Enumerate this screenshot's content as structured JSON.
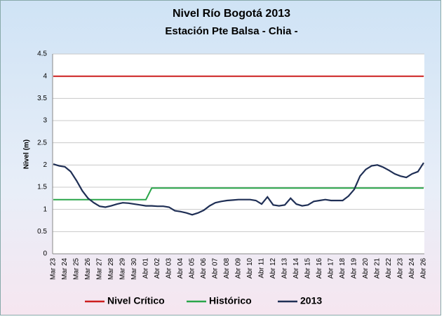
{
  "chart_data": {
    "type": "line",
    "title": "Nivel Río Bogotá  2013",
    "subtitle": "Estación Pte Balsa - Chia -",
    "y_label": "Nivel (m)",
    "categories": [
      "Mar 23",
      null,
      "Mar 24",
      null,
      "Mar 25",
      null,
      "Mar 26",
      null,
      "Mar 27",
      null,
      "Mar 28",
      null,
      "Mar 29",
      null,
      "Mar 30",
      null,
      "Abr 01",
      null,
      "Abr 02",
      null,
      "Abr 03",
      null,
      "Abr 04",
      null,
      "Abr 05",
      null,
      "Abr 06",
      null,
      "Abr 07",
      null,
      "Abr 08",
      null,
      "Abr 09",
      null,
      "Abr 10",
      null,
      "Abr 11",
      null,
      "Abr 12",
      null,
      "Abr 13",
      null,
      "Abr 14",
      null,
      "Abr 15",
      null,
      "Abr 16",
      null,
      "Abr 17",
      null,
      "Abr 18",
      null,
      "Abr 19",
      null,
      "Abr 20",
      null,
      "Abr 21",
      null,
      "Abr 22",
      null,
      "Abr 23",
      null,
      "Abr 24",
      null,
      "Abr 26"
    ],
    "series": [
      {
        "name": "Nivel Crítico",
        "color": "#cc1f1f",
        "values": [
          4,
          4,
          4,
          4,
          4,
          4,
          4,
          4,
          4,
          4,
          4,
          4,
          4,
          4,
          4,
          4,
          4,
          4,
          4,
          4,
          4,
          4,
          4,
          4,
          4,
          4,
          4,
          4,
          4,
          4,
          4,
          4,
          4,
          4,
          4,
          4,
          4,
          4,
          4,
          4,
          4,
          4,
          4,
          4,
          4,
          4,
          4,
          4,
          4,
          4,
          4,
          4,
          4,
          4,
          4,
          4,
          4,
          4,
          4,
          4,
          4,
          4,
          4,
          4,
          4
        ]
      },
      {
        "name": "Histórico",
        "color": "#2aa64a",
        "values": [
          1.22,
          1.22,
          1.22,
          1.22,
          1.22,
          1.22,
          1.22,
          1.22,
          1.22,
          1.22,
          1.22,
          1.22,
          1.22,
          1.22,
          1.22,
          1.22,
          1.22,
          1.48,
          1.48,
          1.48,
          1.48,
          1.48,
          1.48,
          1.48,
          1.48,
          1.48,
          1.48,
          1.48,
          1.48,
          1.48,
          1.48,
          1.48,
          1.48,
          1.48,
          1.48,
          1.48,
          1.48,
          1.48,
          1.48,
          1.48,
          1.48,
          1.48,
          1.48,
          1.48,
          1.48,
          1.48,
          1.48,
          1.48,
          1.48,
          1.48,
          1.48,
          1.48,
          1.48,
          1.48,
          1.48,
          1.48,
          1.48,
          1.48,
          1.48,
          1.48,
          1.48,
          1.48,
          1.48,
          1.48,
          1.48
        ]
      },
      {
        "name": "2013",
        "color": "#1f2f55",
        "values": [
          2.02,
          1.98,
          1.96,
          1.85,
          1.65,
          1.42,
          1.25,
          1.15,
          1.07,
          1.05,
          1.08,
          1.12,
          1.15,
          1.14,
          1.12,
          1.1,
          1.08,
          1.08,
          1.07,
          1.07,
          1.05,
          0.97,
          0.95,
          0.92,
          0.88,
          0.92,
          0.98,
          1.08,
          1.15,
          1.18,
          1.2,
          1.21,
          1.22,
          1.22,
          1.22,
          1.2,
          1.12,
          1.28,
          1.1,
          1.08,
          1.1,
          1.25,
          1.12,
          1.08,
          1.1,
          1.18,
          1.2,
          1.22,
          1.2,
          1.2,
          1.2,
          1.3,
          1.45,
          1.75,
          1.9,
          1.98,
          2.0,
          1.95,
          1.88,
          1.8,
          1.75,
          1.72,
          1.8,
          1.85,
          2.05
        ]
      }
    ],
    "ylim": [
      0,
      4.5
    ],
    "yticks": [
      0,
      0.5,
      1,
      1.5,
      2,
      2.5,
      3,
      3.5,
      4,
      4.5
    ],
    "grid": true,
    "legend": "bottom"
  }
}
